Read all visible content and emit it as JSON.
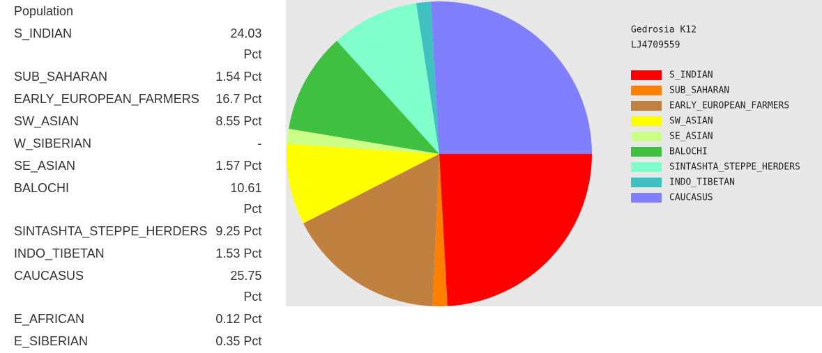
{
  "table": {
    "header": "Population",
    "rows": [
      [
        "S_INDIAN",
        "24.03 Pct"
      ],
      [
        "SUB_SAHARAN",
        "1.54 Pct"
      ],
      [
        "EARLY_EUROPEAN_FARMERS",
        "16.7 Pct"
      ],
      [
        "SW_ASIAN",
        "8.55 Pct"
      ],
      [
        "W_SIBERIAN",
        "-"
      ],
      [
        "SE_ASIAN",
        "1.57 Pct"
      ],
      [
        "BALOCHI",
        "10.61 Pct"
      ],
      [
        "SINTASHTA_STEPPE_HERDERS",
        "9.25 Pct"
      ],
      [
        "INDO_TIBETAN",
        "1.53 Pct"
      ],
      [
        "CAUCASUS",
        "25.75 Pct"
      ],
      [
        "E_AFRICAN",
        "0.12 Pct"
      ],
      [
        "E_SIBERIAN",
        "0.35 Pct"
      ]
    ]
  },
  "chart_data": {
    "type": "pie",
    "title": "Gedrosia K12",
    "subtitle": "LJ4709559",
    "categories": [
      "S_INDIAN",
      "SUB_SAHARAN",
      "EARLY_EUROPEAN_FARMERS",
      "SW_ASIAN",
      "SE_ASIAN",
      "BALOCHI",
      "SINTASHTA_STEPPE_HERDERS",
      "INDO_TIBETAN",
      "CAUCASUS"
    ],
    "values": [
      24.03,
      1.54,
      16.7,
      8.55,
      1.57,
      10.61,
      9.25,
      1.53,
      25.75
    ],
    "colors": [
      "#ff0000",
      "#ff8000",
      "#c08040",
      "#ffff00",
      "#ccff88",
      "#40c040",
      "#80ffcc",
      "#40c0c0",
      "#8080ff"
    ]
  }
}
